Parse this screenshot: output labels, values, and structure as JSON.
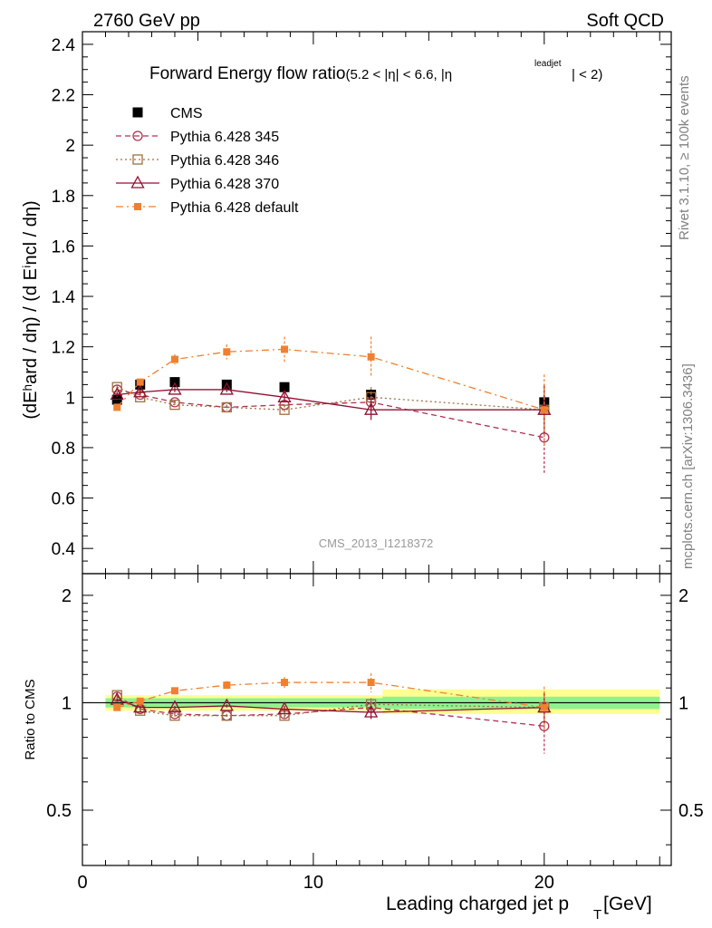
{
  "header": {
    "left_label": "2760 GeV pp",
    "right_label": "Soft QCD"
  },
  "side_labels": {
    "rivet": "Rivet 3.1.10, ≥ 100k events",
    "mcplots": "mcplots.cern.ch [arXiv:1306.3436]"
  },
  "colors": {
    "cms": "#000000",
    "p345": "#b03050",
    "p346": "#a07040",
    "p370": "#901030",
    "pdefault": "#f08030",
    "band_inner": "#90f090",
    "band_outer": "#ffff90"
  },
  "chart_data": [
    {
      "type": "scatter",
      "panel": "main",
      "title_main": "Forward Energy flow ratio",
      "title_sub": "(5.2 < |η| < 6.6, |η",
      "title_sup": "leadjet",
      "title_end": "| < 2)",
      "ylabel": "(dEʰard / dη) / (d Eⁱncl / dη)",
      "watermark": "CMS_2013_I1218372",
      "xlim": [
        0,
        25.5
      ],
      "ylim": [
        0.3,
        2.45
      ],
      "yticks": [
        "0.4",
        "0.6",
        "0.8",
        "1",
        "1.2",
        "1.4",
        "1.6",
        "1.8",
        "2",
        "2.2",
        "2.4"
      ],
      "legend_position": "top-left",
      "series": [
        {
          "name": "CMS",
          "key": "cms",
          "marker": "filled-square",
          "line": "none",
          "x": [
            1.5,
            2.5,
            4.0,
            6.25,
            8.75,
            12.5,
            20.0
          ],
          "y": [
            0.99,
            1.05,
            1.06,
            1.05,
            1.04,
            1.01,
            0.98
          ],
          "err": [
            0.01,
            0.01,
            0.01,
            0.01,
            0.01,
            0.02,
            0.03
          ]
        },
        {
          "name": "Pythia 6.428 345",
          "key": "p345",
          "marker": "open-circle",
          "line": "dashed",
          "x": [
            1.5,
            2.5,
            4.0,
            6.25,
            8.75,
            12.5,
            20.0
          ],
          "y": [
            1.03,
            1.01,
            0.98,
            0.96,
            0.97,
            0.98,
            0.84
          ],
          "err": [
            0.01,
            0.01,
            0.01,
            0.01,
            0.02,
            0.04,
            0.14
          ]
        },
        {
          "name": "Pythia 6.428 346",
          "key": "p346",
          "marker": "open-square",
          "line": "dotted",
          "x": [
            1.5,
            2.5,
            4.0,
            6.25,
            8.75,
            12.5,
            20.0
          ],
          "y": [
            1.04,
            1.0,
            0.97,
            0.96,
            0.95,
            1.0,
            0.95
          ],
          "err": [
            0.01,
            0.01,
            0.01,
            0.01,
            0.02,
            0.04,
            0.1
          ]
        },
        {
          "name": "Pythia 6.428 370",
          "key": "p370",
          "marker": "open-triangle",
          "line": "solid",
          "x": [
            1.5,
            2.5,
            4.0,
            6.25,
            8.75,
            12.5,
            20.0
          ],
          "y": [
            1.01,
            1.02,
            1.03,
            1.03,
            1.0,
            0.95,
            0.95
          ],
          "err": [
            0.01,
            0.01,
            0.01,
            0.01,
            0.02,
            0.04,
            0.1
          ]
        },
        {
          "name": "Pythia 6.428 default",
          "key": "pdefault",
          "marker": "filled-square-small",
          "line": "dashdot",
          "x": [
            1.5,
            2.5,
            4.0,
            6.25,
            8.75,
            12.5,
            20.0
          ],
          "y": [
            0.96,
            1.06,
            1.15,
            1.18,
            1.19,
            1.16,
            0.95
          ],
          "err": [
            0.01,
            0.01,
            0.02,
            0.03,
            0.05,
            0.08,
            0.14
          ]
        }
      ]
    },
    {
      "type": "scatter",
      "panel": "ratio",
      "ylabel": "Ratio to CMS",
      "xlabel": "Leading charged jet p",
      "xlabel_sub": "T",
      "xlabel_end": " [GeV]",
      "xlim": [
        0,
        25.5
      ],
      "ylim": [
        0.35,
        2.3
      ],
      "yscale": "log",
      "xticks": [
        "0",
        "10",
        "20"
      ],
      "yticks": [
        "0.5",
        "1",
        "2"
      ],
      "reference_line": 1,
      "bands": [
        {
          "x_from": 1.0,
          "x_to": 25.0,
          "inner": [
            0.97,
            1.03
          ],
          "outer": [
            0.95,
            1.05
          ]
        },
        {
          "x_from": 1.0,
          "x_to": 13.0,
          "inner": [
            0.98,
            1.02
          ],
          "outer": [
            0.96,
            1.04
          ]
        },
        {
          "x_from": 13.0,
          "x_to": 25.0,
          "inner": [
            0.96,
            1.04
          ],
          "outer": [
            0.93,
            1.09
          ]
        }
      ],
      "series": [
        {
          "name": "Pythia 6.428 345",
          "key": "p345",
          "marker": "open-circle",
          "line": "dashed",
          "x": [
            1.5,
            2.5,
            4.0,
            6.25,
            8.75,
            12.5,
            20.0
          ],
          "y": [
            1.04,
            0.96,
            0.93,
            0.92,
            0.93,
            0.97,
            0.86
          ],
          "err": [
            0.01,
            0.01,
            0.01,
            0.01,
            0.02,
            0.04,
            0.14
          ]
        },
        {
          "name": "Pythia 6.428 346",
          "key": "p346",
          "marker": "open-square",
          "line": "dotted",
          "x": [
            1.5,
            2.5,
            4.0,
            6.25,
            8.75,
            12.5,
            20.0
          ],
          "y": [
            1.05,
            0.95,
            0.92,
            0.92,
            0.92,
            0.99,
            0.97
          ],
          "err": [
            0.01,
            0.01,
            0.01,
            0.01,
            0.02,
            0.04,
            0.1
          ]
        },
        {
          "name": "Pythia 6.428 370",
          "key": "p370",
          "marker": "open-triangle",
          "line": "solid",
          "x": [
            1.5,
            2.5,
            4.0,
            6.25,
            8.75,
            12.5,
            20.0
          ],
          "y": [
            1.02,
            0.97,
            0.97,
            0.98,
            0.96,
            0.94,
            0.97
          ],
          "err": [
            0.01,
            0.01,
            0.01,
            0.01,
            0.02,
            0.04,
            0.1
          ]
        },
        {
          "name": "Pythia 6.428 default",
          "key": "pdefault",
          "marker": "filled-square-small",
          "line": "dashdot",
          "x": [
            1.5,
            2.5,
            4.0,
            6.25,
            8.75,
            12.5,
            20.0
          ],
          "y": [
            0.97,
            1.01,
            1.08,
            1.12,
            1.14,
            1.14,
            0.97
          ],
          "err": [
            0.01,
            0.01,
            0.02,
            0.03,
            0.04,
            0.07,
            0.14
          ]
        }
      ]
    }
  ]
}
